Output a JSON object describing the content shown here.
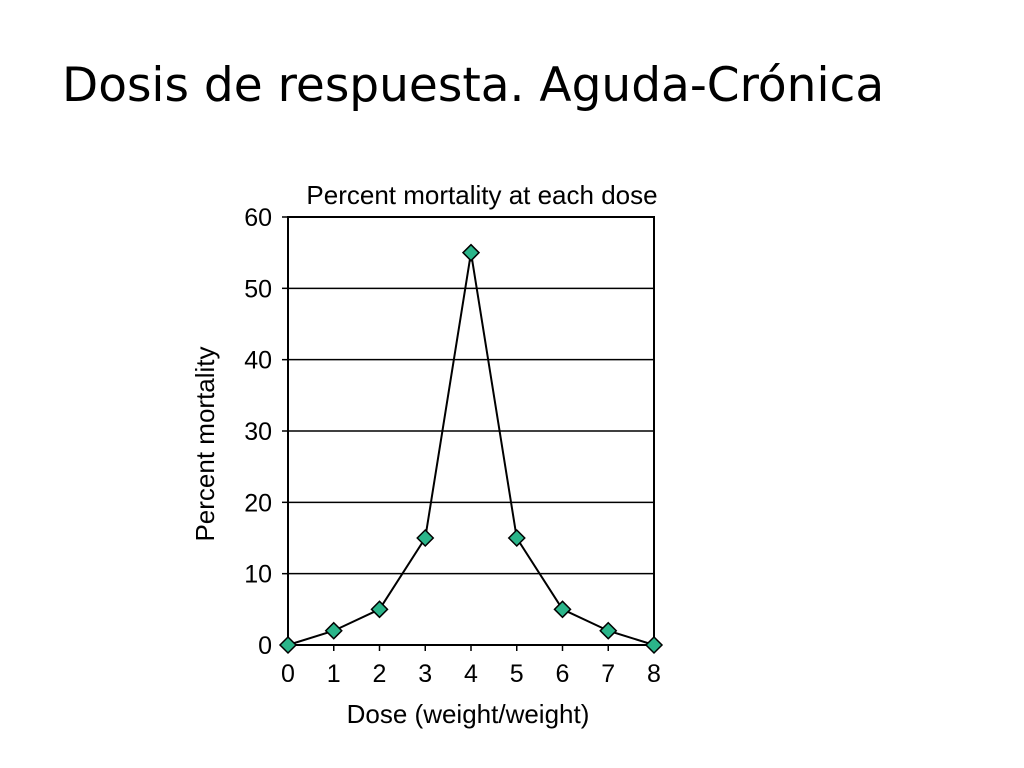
{
  "slide": {
    "title": "Dosis de respuesta. Aguda-Crónica"
  },
  "chart_data": {
    "type": "line",
    "title": "Percent mortality at each dose",
    "xlabel": "Dose (weight/weight)",
    "ylabel": "Percent mortality",
    "x": [
      0,
      1,
      2,
      3,
      4,
      5,
      6,
      7,
      8
    ],
    "series": [
      {
        "values": [
          0,
          2,
          5,
          15,
          55,
          15,
          5,
          2,
          0
        ]
      }
    ],
    "xlim": [
      0,
      8
    ],
    "ylim": [
      0,
      60
    ],
    "xticks": [
      0,
      1,
      2,
      3,
      4,
      5,
      6,
      7,
      8
    ],
    "yticks": [
      0,
      10,
      20,
      30,
      40,
      50,
      60
    ],
    "grid": "horizontal",
    "marker": "diamond",
    "colors": {
      "marker_fill": "#2bb58a",
      "line": "#000000",
      "grid": "#000000",
      "frame": "#000000"
    }
  }
}
